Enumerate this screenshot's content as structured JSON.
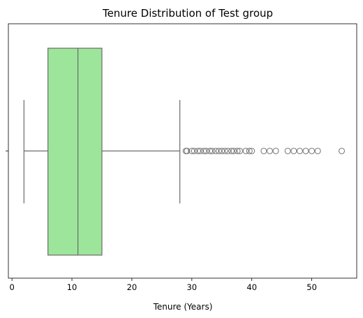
{
  "chart_data": {
    "type": "boxplot",
    "title": "Tenure Distribution of Test group",
    "xlabel": "Tenure (Years)",
    "ylabel": "",
    "xlim": [
      -0.6,
      57.5
    ],
    "xticks": [
      0,
      10,
      20,
      30,
      40,
      50
    ],
    "orientation": "horizontal",
    "box": {
      "whisker_low": 2,
      "q1": 6,
      "median": 11,
      "q3": 15,
      "whisker_high": 28,
      "fill_color": "#9de59a",
      "line_color": "#6b6b6b"
    },
    "outliers": [
      29,
      29.2,
      30,
      30.4,
      31,
      31.4,
      32,
      32.4,
      33,
      33.4,
      34,
      34.5,
      35,
      35.5,
      36,
      36.6,
      37,
      37.6,
      38,
      39,
      39.6,
      40,
      42,
      43,
      44,
      46,
      47,
      48,
      49,
      50,
      51,
      55
    ]
  }
}
